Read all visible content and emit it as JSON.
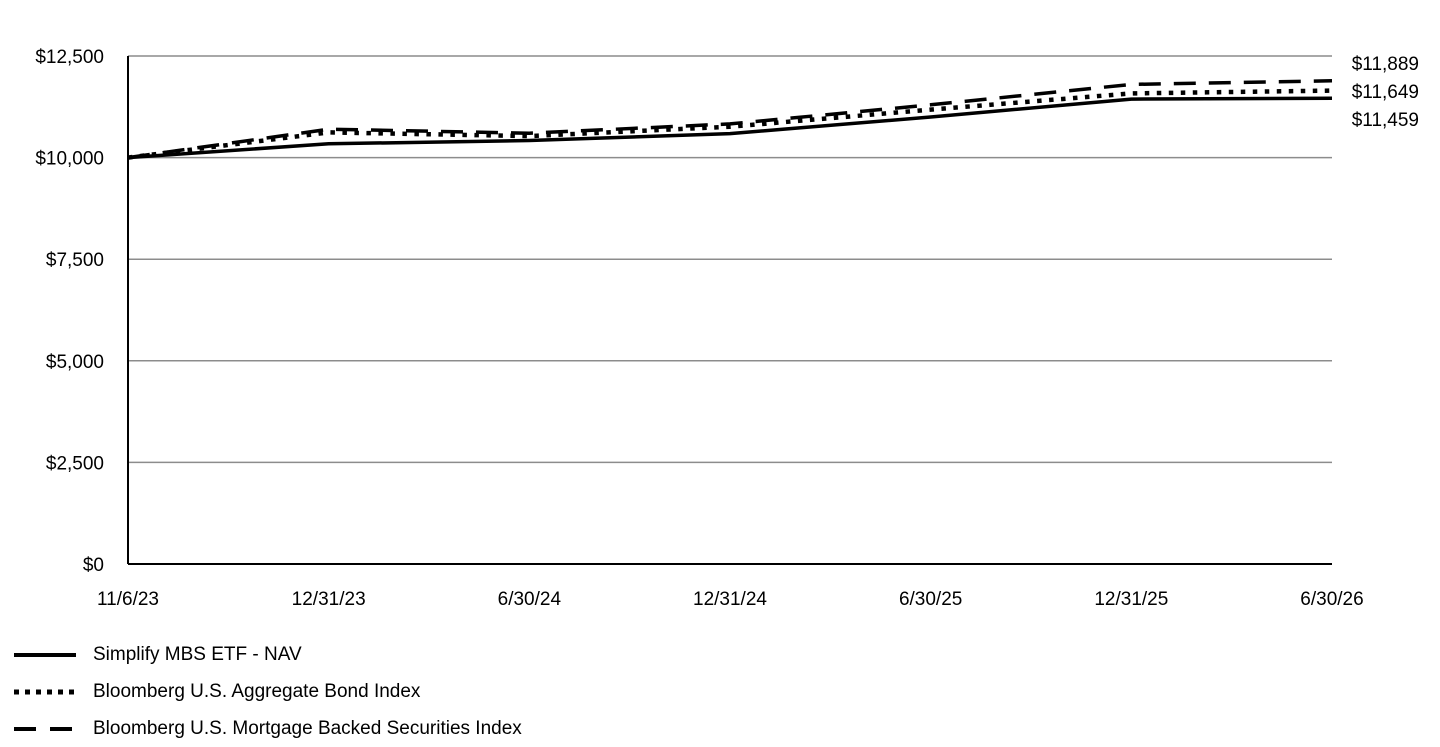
{
  "chart_data": {
    "type": "line",
    "title": "",
    "xlabel": "",
    "ylabel": "",
    "x": [
      "11/6/23",
      "12/31/23",
      "6/30/24",
      "12/31/24",
      "6/30/25",
      "12/31/25",
      "6/30/26"
    ],
    "ylim": [
      0,
      12500
    ],
    "yticks": [
      0,
      2500,
      5000,
      7500,
      10000,
      12500
    ],
    "ytick_labels": [
      "$0",
      "$2,500",
      "$5,000",
      "$7,500",
      "$10,000",
      "$12,500"
    ],
    "grid": "horizontal",
    "legend_position": "bottom-left",
    "series": [
      {
        "name": "Simplify MBS ETF - NAV",
        "style": "solid",
        "color": "#000000",
        "values": [
          10000,
          10340,
          10420,
          10590,
          11000,
          11440,
          11459
        ],
        "end_label": "$11,459"
      },
      {
        "name": "Bloomberg U.S. Aggregate Bond Index",
        "style": "dotted",
        "color": "#000000",
        "values": [
          10000,
          10620,
          10530,
          10760,
          11180,
          11580,
          11649
        ],
        "end_label": "$11,649"
      },
      {
        "name": "Bloomberg U.S. Mortgage Backed Securities Index",
        "style": "dashed",
        "color": "#000000",
        "values": [
          10000,
          10700,
          10600,
          10830,
          11300,
          11800,
          11889
        ],
        "end_label": "$11,889"
      }
    ]
  }
}
